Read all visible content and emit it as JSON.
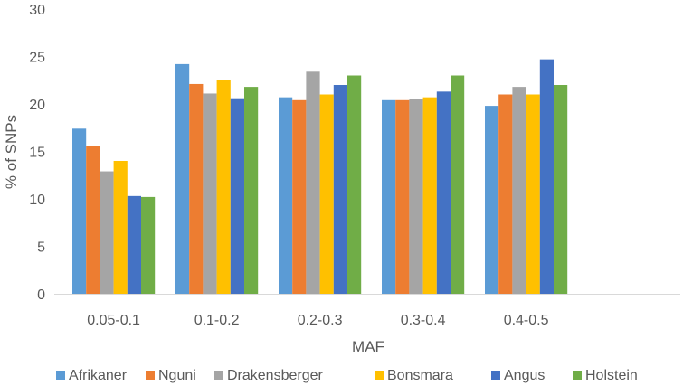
{
  "chart_data": {
    "type": "bar",
    "title": "",
    "xlabel": "MAF",
    "ylabel": "% of SNPs",
    "ylim": [
      0,
      30
    ],
    "yticks": [
      0,
      5,
      10,
      15,
      20,
      25,
      30
    ],
    "grid": false,
    "legend_position": "bottom",
    "categories": [
      "0.05-0.1",
      "0.1-0.2",
      "0.2-0.3",
      "0.3-0.4",
      "0.4-0.5"
    ],
    "series": [
      {
        "name": "Afrikaner",
        "color": "#5B9BD5",
        "values": [
          17.4,
          24.2,
          20.7,
          20.4,
          19.8
        ]
      },
      {
        "name": "Nguni",
        "color": "#ED7D31",
        "values": [
          15.6,
          22.1,
          20.4,
          20.4,
          21.0
        ]
      },
      {
        "name": "Drakensberger",
        "color": "#A5A5A5",
        "values": [
          12.9,
          21.1,
          23.4,
          20.5,
          21.8
        ]
      },
      {
        "name": "Bonsmara",
        "color": "#FFC000",
        "values": [
          14.0,
          22.5,
          21.0,
          20.7,
          21.0
        ]
      },
      {
        "name": "Angus",
        "color": "#4472C4",
        "values": [
          10.3,
          20.6,
          22.0,
          21.3,
          24.7
        ]
      },
      {
        "name": "Holstein",
        "color": "#70AD47",
        "values": [
          10.2,
          21.8,
          23.0,
          23.0,
          22.0
        ]
      }
    ]
  }
}
